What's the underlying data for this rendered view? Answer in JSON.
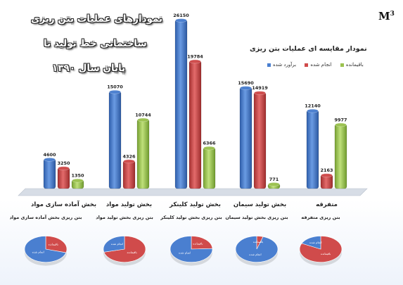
{
  "slide": {
    "title_lines": [
      "نمودارهای عملیات بتن ریزی",
      "ساختمانی خط تولید تا",
      "پایان سال ۱۳۹۰"
    ],
    "unit_base": "M",
    "unit_exp": "3"
  },
  "chart_data": [
    {
      "type": "bar",
      "title": "نمودار مقایسه ای عملیات بتن ریزی",
      "categories": [
        "بخش آماده سازی مواد",
        "بخش تولید مواد",
        "بخش تولید کلینکر",
        "بخش تولید سیمان",
        "متفرقه"
      ],
      "series": [
        {
          "name": "برآورد شده",
          "color": "#4a7fd0",
          "values": [
            4600,
            15070,
            26150,
            15690,
            12140
          ]
        },
        {
          "name": "انجام شده",
          "color": "#d04b4b",
          "values": [
            3250,
            4326,
            19784,
            14919,
            2163
          ]
        },
        {
          "name": "باقیمانده",
          "color": "#9bc24f",
          "values": [
            1350,
            10744,
            6366,
            771,
            9977
          ]
        }
      ],
      "data_labels": [
        [
          "4600",
          "3250",
          "1350"
        ],
        [
          "15070",
          "4326",
          "10744"
        ],
        [
          "26150",
          "19784",
          "6366"
        ],
        [
          "15690",
          "14919",
          "771"
        ],
        [
          "12140",
          "2163",
          "9977"
        ]
      ],
      "legend_position": "top-right",
      "grid": false
    },
    {
      "type": "pie",
      "items": [
        {
          "title": "بتن ریزی بخش آماده سازی مواد",
          "done": 3250,
          "remaining": 1350,
          "done_label": "انجام شده",
          "remaining_label": "باقیمانده"
        },
        {
          "title": "بتن ریزی بخش تولید مواد",
          "done": 4326,
          "remaining": 10744,
          "done_label": "انجام شده",
          "remaining_label": "باقیمانده"
        },
        {
          "title": "بتن ریزی بخش تولید کلینکر",
          "done": 19784,
          "remaining": 6366,
          "done_label": "انجام شده",
          "remaining_label": "باقیمانده"
        },
        {
          "title": "بتن ریزی بخش تولید سیمان",
          "done": 14919,
          "remaining": 771,
          "done_label": "انجام شده",
          "remaining_label": "باقیمانده"
        },
        {
          "title": "بتن ریزی متفرقه",
          "done": 2163,
          "remaining": 9977,
          "done_label": "انجام شده",
          "remaining_label": "باقیمانده"
        }
      ],
      "done_color": "#4a7fd0",
      "remaining_color": "#d04b4b"
    }
  ]
}
